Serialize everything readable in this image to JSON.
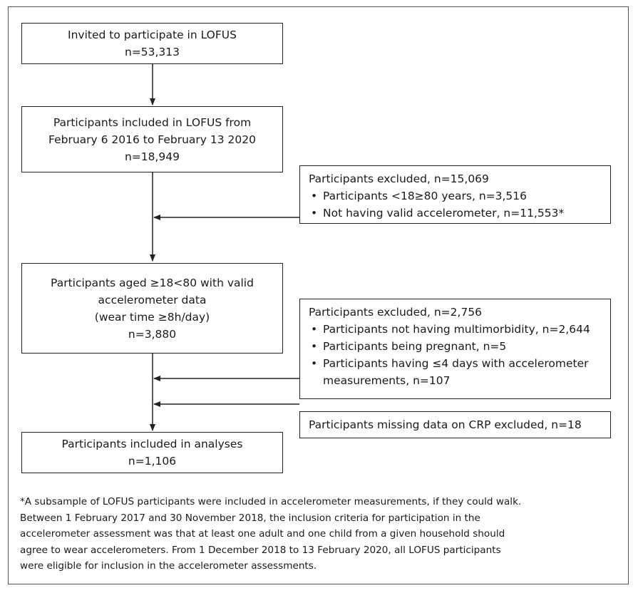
{
  "boxes": {
    "invited": {
      "line1": "Invited to participate in LOFUS",
      "line2": "n=53,313"
    },
    "included": {
      "line1": "Participants included in LOFUS from",
      "line2": "February 6 2016 to February 13 2020",
      "line3": "n=18,949"
    },
    "excluded1": {
      "title": "Participants excluded, n=15,069",
      "items": [
        "Participants <18≥80 years, n=3,516",
        "Not having valid accelerometer, n=11,553*"
      ]
    },
    "aged": {
      "line1": "Participants aged ≥18<80 with valid",
      "line2": "accelerometer data",
      "line3": "(wear time ≥8h/day)",
      "line4": "n=3,880"
    },
    "excluded2": {
      "title": "Participants excluded, n=2,756",
      "items": [
        "Participants not having multimorbidity,  n=2,644",
        "Participants being pregnant, n=5",
        "Participants having ≤4 days with accelerometer measurements, n=107"
      ]
    },
    "missing_crp": {
      "line1": "Participants missing data on CRP excluded, n=18"
    },
    "final": {
      "line1": "Participants included in analyses",
      "line2": "n=1,106"
    }
  },
  "footnote": [
    "*A subsample of LOFUS participants were included in accelerometer measurements, if they could walk.",
    "Between 1 February 2017 and 30 November 2018, the inclusion criteria for participation in the",
    "accelerometer assessment was that at least one adult and one child from a given household should",
    "agree to wear accelerometers. From 1 December 2018 to 13 February 2020,  all LOFUS participants",
    "were eligible for inclusion in the accelerometer assessments."
  ],
  "colors": {
    "border": "#222222",
    "text": "#1a1a1a",
    "frame": "#555555"
  }
}
